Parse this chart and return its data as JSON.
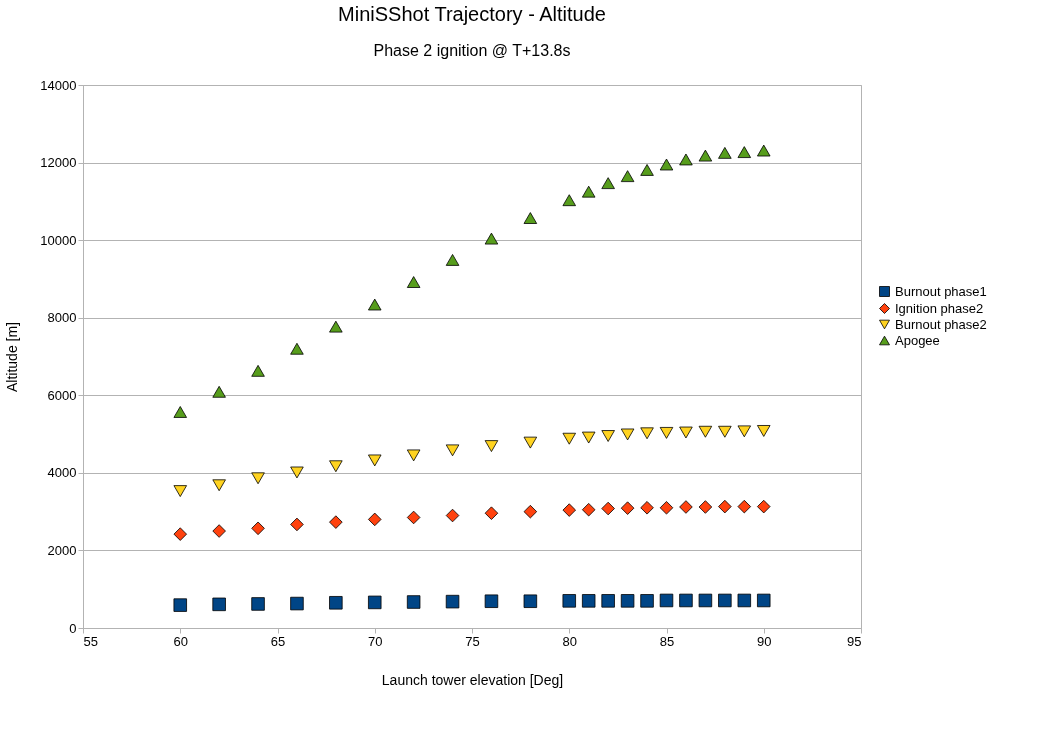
{
  "chart_data": {
    "type": "scatter",
    "title": "MiniSShot Trajectory - Altitude",
    "subtitle": "Phase 2 ignition @ T+13.8s",
    "xlabel": "Launch tower elevation [Deg]",
    "ylabel": "Altitude [m]",
    "x": [
      60,
      62,
      64,
      66,
      68,
      70,
      72,
      74,
      76,
      78,
      80,
      81,
      82,
      83,
      84,
      85,
      86,
      87,
      88,
      89,
      90
    ],
    "series": [
      {
        "name": "Burnout phase1",
        "color": "#004586",
        "marker": "square",
        "values": [
          590,
          610,
          620,
          630,
          650,
          660,
          670,
          680,
          690,
          690,
          700,
          700,
          700,
          700,
          700,
          710,
          710,
          710,
          710,
          710,
          710
        ]
      },
      {
        "name": "Ignition phase2",
        "color": "#ff420e",
        "marker": "diamond",
        "values": [
          2420,
          2500,
          2570,
          2670,
          2730,
          2800,
          2850,
          2900,
          2960,
          3000,
          3040,
          3050,
          3080,
          3090,
          3100,
          3100,
          3120,
          3120,
          3130,
          3130,
          3130
        ]
      },
      {
        "name": "Burnout phase2",
        "color": "#ffd320",
        "marker": "triangle-down",
        "values": [
          3530,
          3680,
          3860,
          4010,
          4170,
          4320,
          4450,
          4580,
          4690,
          4780,
          4880,
          4910,
          4950,
          4990,
          5020,
          5030,
          5040,
          5060,
          5060,
          5070,
          5080
        ]
      },
      {
        "name": "Apogee",
        "color": "#579d1c",
        "marker": "triangle",
        "values": [
          5570,
          6090,
          6630,
          7200,
          7770,
          8340,
          8920,
          9490,
          10040,
          10570,
          11030,
          11250,
          11470,
          11650,
          11810,
          11950,
          12080,
          12180,
          12250,
          12270,
          12310
        ]
      }
    ],
    "xlim": [
      55,
      95
    ],
    "xticks": [
      55,
      60,
      65,
      70,
      75,
      80,
      85,
      90,
      95
    ],
    "ylim": [
      0,
      14000
    ],
    "yticks": [
      0,
      2000,
      4000,
      6000,
      8000,
      10000,
      12000,
      14000
    ],
    "grid": "y",
    "legend": "right"
  }
}
